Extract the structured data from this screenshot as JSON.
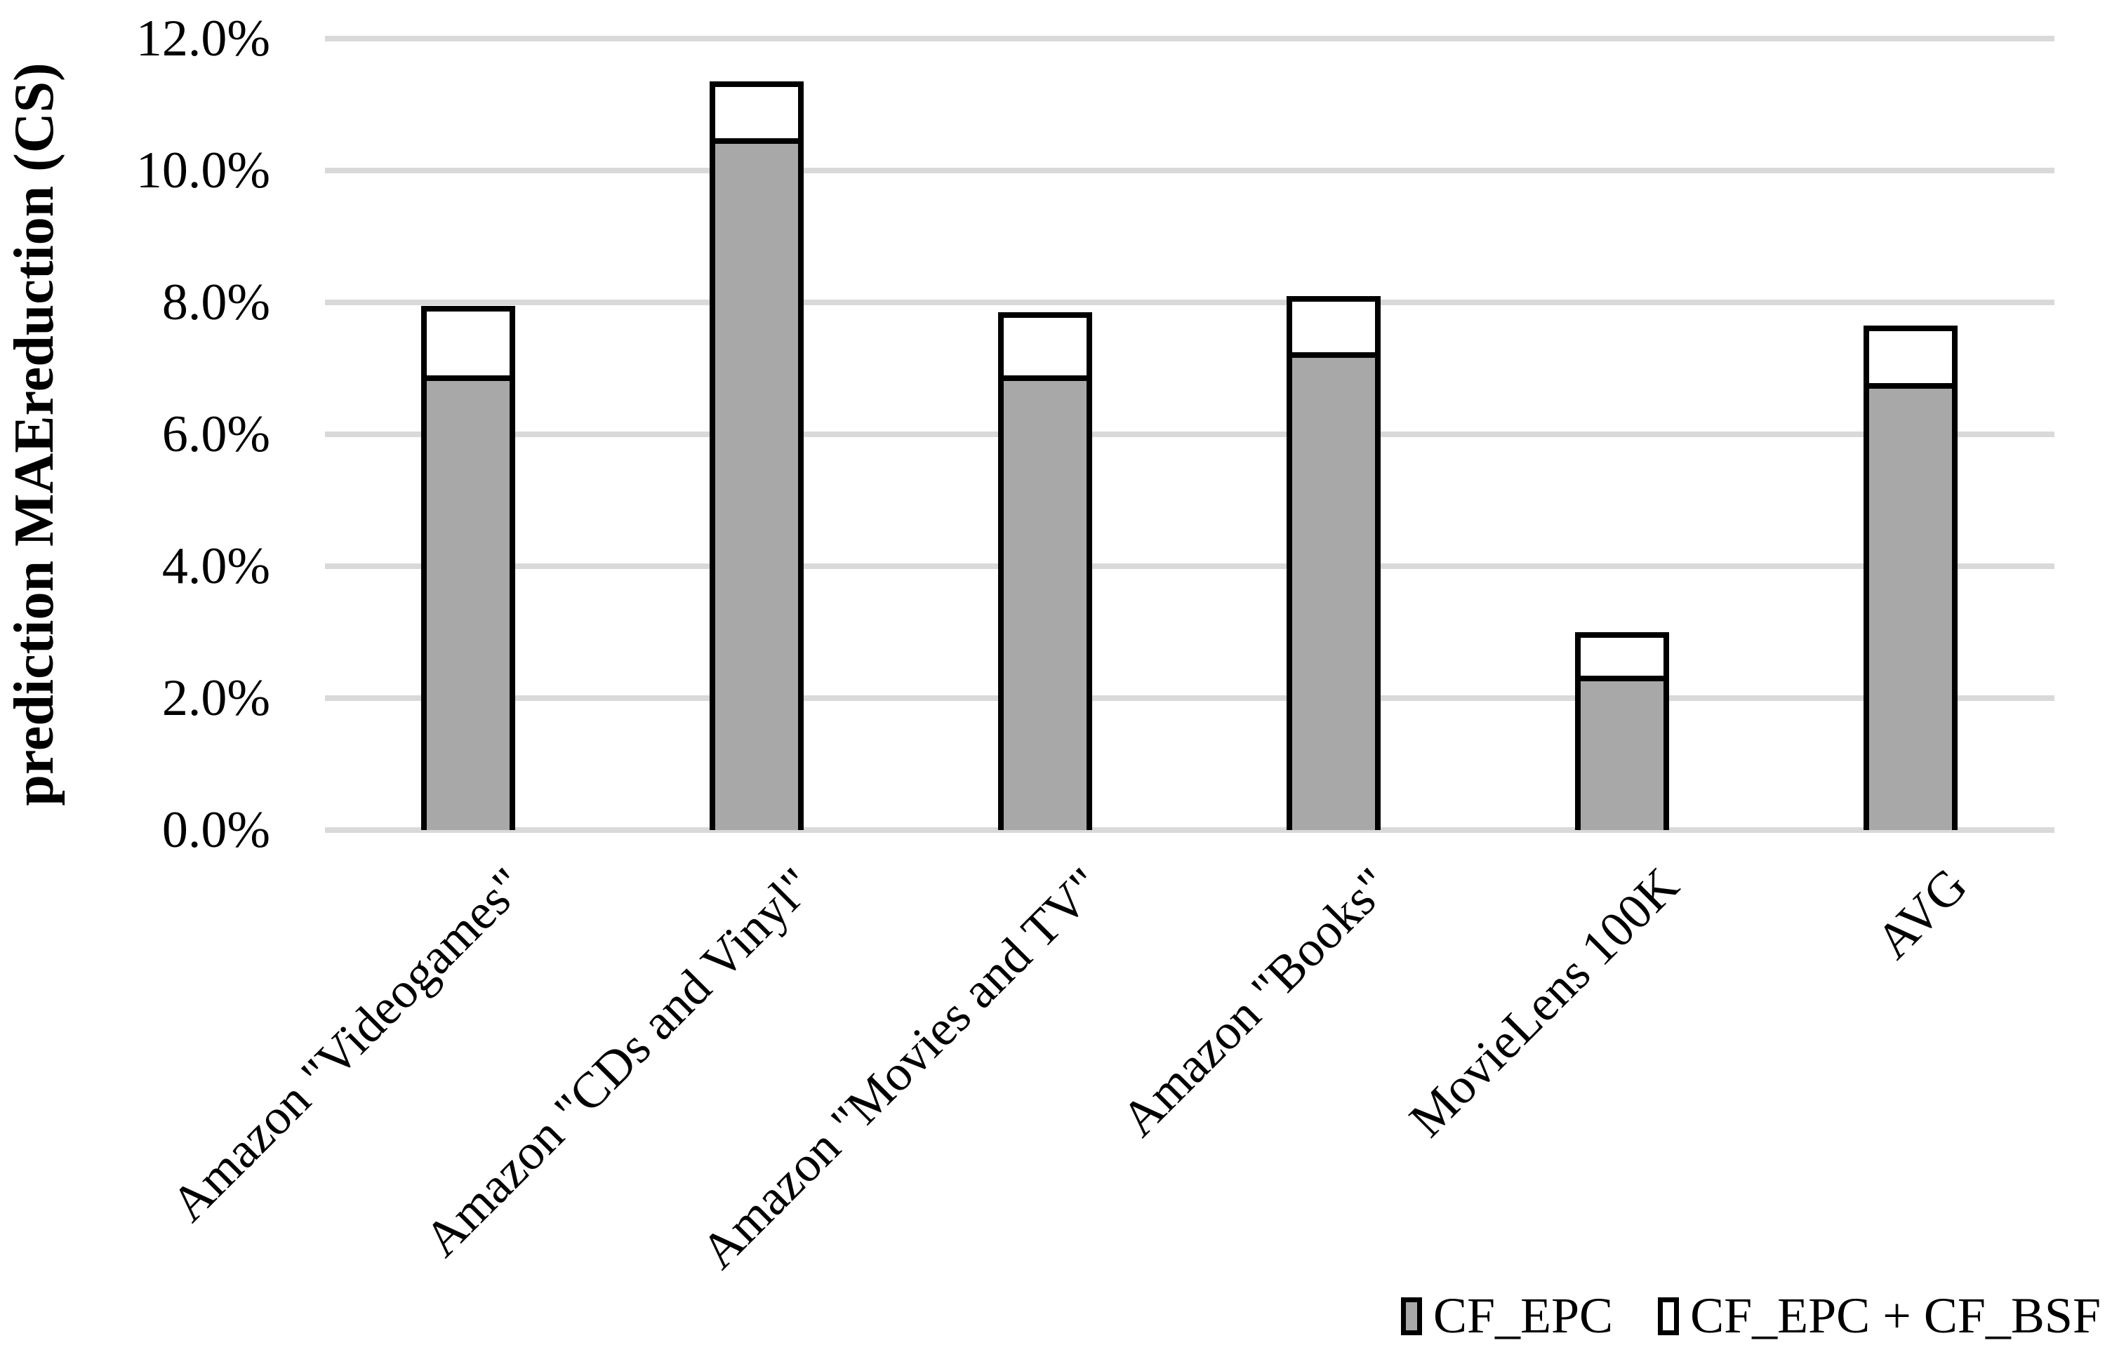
{
  "y_axis": {
    "title": "prediction MAEreduction (CS)",
    "max": 12,
    "ticks": [
      {
        "label": "0.0%",
        "value": 0
      },
      {
        "label": "2.0%",
        "value": 2
      },
      {
        "label": "4.0%",
        "value": 4
      },
      {
        "label": "6.0%",
        "value": 6
      },
      {
        "label": "8.0%",
        "value": 8
      },
      {
        "label": "10.0%",
        "value": 10
      },
      {
        "label": "12.0%",
        "value": 12
      }
    ]
  },
  "x_axis": {
    "categories": [
      "Amazon \"Videogames\"",
      "Amazon \"CDs and Vinyl\"",
      "Amazon \"Movies and TV\"",
      "Amazon \"Books\"",
      "MovieLens 100K",
      "AVG"
    ]
  },
  "legend": {
    "items": [
      {
        "label": "CF_EPC",
        "fill": "#a8a8a8"
      },
      {
        "label": "CF_EPC + CF_BSF",
        "fill": "#ffffff"
      }
    ]
  },
  "colors": {
    "bar_fill_gray": "#a8a8a8",
    "bar_fill_white": "#ffffff",
    "bar_border": "#000000",
    "gridline": "#d9d9d9",
    "background": "#ffffff",
    "text": "#000000"
  },
  "chart_data": {
    "type": "bar",
    "stacked": true,
    "title": "",
    "xlabel": "",
    "ylabel": "prediction MAEreduction (CS)",
    "ylim": [
      0,
      12
    ],
    "ytick_step": 2,
    "grid": true,
    "legend_position": "bottom-right",
    "value_unit": "percent",
    "series_semantics": "First series is the gray CF_EPC segment height; second series values are the cumulative stacked totals (top of the white CF_EPC + CF_BSF segment).",
    "categories": [
      "Amazon \"Videogames\"",
      "Amazon \"CDs and Vinyl\"",
      "Amazon \"Movies and TV\"",
      "Amazon \"Books\"",
      "MovieLens 100K",
      "AVG"
    ],
    "series": [
      {
        "name": "CF_EPC",
        "values": [
          6.85,
          10.45,
          6.85,
          7.2,
          2.3,
          6.73
        ]
      },
      {
        "name": "CF_EPC + CF_BSF",
        "values": [
          7.95,
          11.35,
          7.85,
          8.1,
          3.0,
          7.65
        ]
      }
    ]
  }
}
